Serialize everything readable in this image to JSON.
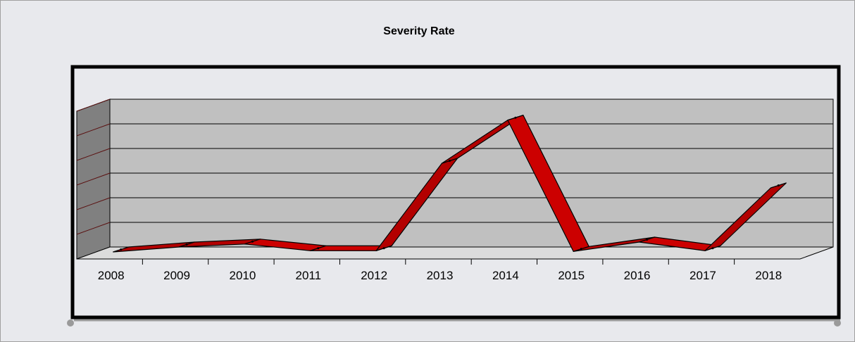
{
  "chart_data": {
    "type": "line",
    "style": "3d-ribbon",
    "title": "Severity Rate",
    "xlabel": "",
    "ylabel": "",
    "categories": [
      "2008",
      "2009",
      "2010",
      "2011",
      "2012",
      "2013",
      "2014",
      "2015",
      "2016",
      "2017",
      "2018"
    ],
    "series": [
      {
        "values": [
          0.0,
          0.2,
          0.32,
          0.05,
          0.05,
          3.6,
          5.35,
          0.02,
          0.4,
          0.05,
          2.6
        ]
      }
    ],
    "ylim": [
      0,
      6
    ],
    "y_ticks_labeled": false,
    "grid": true,
    "legend": "none",
    "colors": {
      "line": "#cc0000",
      "line_edge": "#000000",
      "wall": "#c0c0c0",
      "floor": "#dcdcdc",
      "side_wall": "#808080",
      "background": "#e8e9ed",
      "plot_frame": "#000000"
    }
  }
}
